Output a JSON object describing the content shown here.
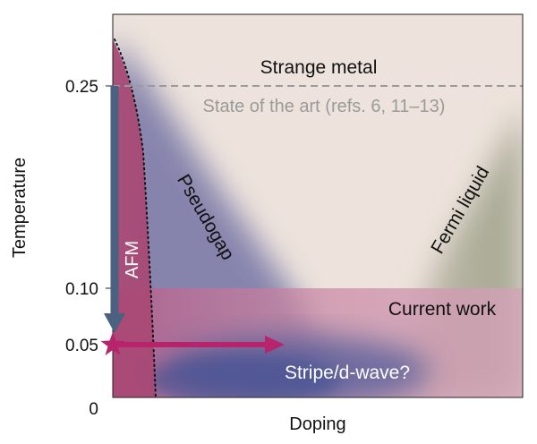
{
  "axes": {
    "y_label": "Temperature",
    "x_label": "Doping",
    "y_ticks": [
      "0.25",
      "0.10",
      "0.05",
      "0"
    ]
  },
  "regions": {
    "strange_metal": "Strange metal",
    "state_of_art": "State of the art (refs. 6, 11–13)",
    "pseudogap": "Pseudogap",
    "fermi_liquid": "Fermi liquid",
    "afm": "AFM",
    "current_work": "Current work",
    "stripe": "Stripe/d-wave?"
  },
  "colors": {
    "background": "#ede3dc",
    "afm": "#a84874",
    "pseudogap": "#5f6498",
    "fermi_liquid": "#a8a894",
    "current_work_band": "#c98aa6",
    "arrow_down": "#4a6180",
    "arrow_right": "#b8246c",
    "state_of_art_line": "#9a9a9a"
  }
}
